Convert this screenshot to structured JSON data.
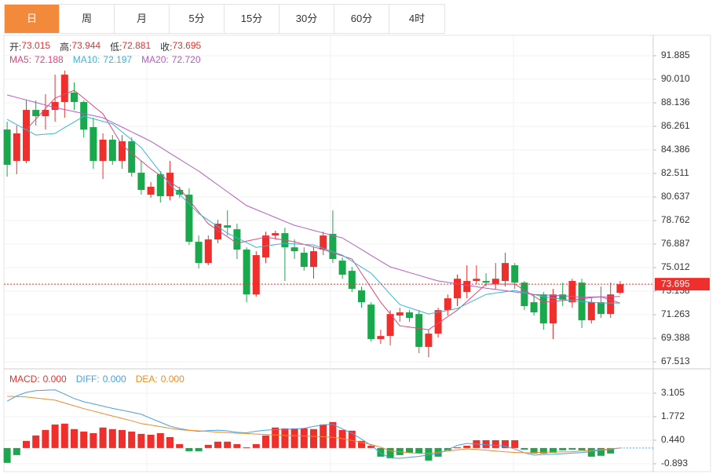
{
  "tabs": [
    "日",
    "周",
    "月",
    "5分",
    "15分",
    "30分",
    "60分",
    "4时"
  ],
  "selected_tab": 0,
  "chart_data": [
    {
      "type": "candlestick",
      "ohlc_legend": [
        {
          "label": "开:",
          "value": "73.015"
        },
        {
          "label": "高:",
          "value": "73.944"
        },
        {
          "label": "低:",
          "value": "72.881"
        },
        {
          "label": "收:",
          "value": "73.695"
        }
      ],
      "up_color": "#ee2f2b",
      "down_color": "#1aa84c",
      "open": [
        86.01,
        83.51,
        83.51,
        87.57,
        87.07,
        87.57,
        88.2,
        88.95,
        88.2,
        86.2,
        83.51,
        85.2,
        83.51,
        85.07,
        82.57,
        80.82,
        82.45,
        80.7,
        81.2,
        80.82,
        77.07,
        75.38,
        77.26,
        78.38,
        78.07,
        76.45,
        72.88,
        75.82,
        77.57,
        77.76,
        76.63,
        76.2,
        75.07,
        76.45,
        77.7,
        75.57,
        74.76,
        73.2,
        72.07,
        69.32,
        69.57,
        71.2,
        71.45,
        71.32,
        68.7,
        69.76,
        71.63,
        72.57,
        73.07,
        73.95,
        73.95,
        73.7,
        73.95,
        75.2,
        73.82,
        72.26,
        72.88,
        70.57,
        72.88,
        72.26,
        73.82,
        70.82,
        72.26,
        71.32,
        73.015
      ],
      "high": [
        86.63,
        86.32,
        88.32,
        88.32,
        88.82,
        90.38,
        90.7,
        89.76,
        88.32,
        86.95,
        85.7,
        85.57,
        85.57,
        85.38,
        83.51,
        81.82,
        82.7,
        83.51,
        81.45,
        81.32,
        77.57,
        77.57,
        78.82,
        79.57,
        78.51,
        76.63,
        76.32,
        77.88,
        77.95,
        78.2,
        77.26,
        76.63,
        76.63,
        77.88,
        79.57,
        75.82,
        75.07,
        73.51,
        72.26,
        70.07,
        71.63,
        71.82,
        71.63,
        71.63,
        70.07,
        71.82,
        72.88,
        74.45,
        75.2,
        75.2,
        74.57,
        75.38,
        76.2,
        75.38,
        73.95,
        72.88,
        73.07,
        73.32,
        73.82,
        74.13,
        74.13,
        72.57,
        73.51,
        73.82,
        73.944
      ],
      "low": [
        82.26,
        82.45,
        83.32,
        86.32,
        86.01,
        86.63,
        86.95,
        87.57,
        85.38,
        82.88,
        82.07,
        83.2,
        82.88,
        82.26,
        80.82,
        80.57,
        80.2,
        80.38,
        80.57,
        76.82,
        74.95,
        75.2,
        76.95,
        77.57,
        75.7,
        72.26,
        72.7,
        75.38,
        77.26,
        73.95,
        75.7,
        74.76,
        74.13,
        76.01,
        75.38,
        74.13,
        73.07,
        71.82,
        69.13,
        68.95,
        68.82,
        70.7,
        70.7,
        68.2,
        67.88,
        69.45,
        71.2,
        71.95,
        72.57,
        73.7,
        73.51,
        73.32,
        73.51,
        73.32,
        71.63,
        71.2,
        70.07,
        69.32,
        71.95,
        71.82,
        70.2,
        70.57,
        71.01,
        71.01,
        72.881
      ],
      "close": [
        83.2,
        85.7,
        87.57,
        87.07,
        87.57,
        88.2,
        90.38,
        88.2,
        86.01,
        83.51,
        85.2,
        83.51,
        85.07,
        82.57,
        81.2,
        81.45,
        80.7,
        82.57,
        80.82,
        77.07,
        75.38,
        77.26,
        78.51,
        78.2,
        76.45,
        72.88,
        76.01,
        77.57,
        77.76,
        76.63,
        76.32,
        75.07,
        76.32,
        77.57,
        75.7,
        74.45,
        73.32,
        72.26,
        69.32,
        69.57,
        71.32,
        71.45,
        71.01,
        68.7,
        69.76,
        71.63,
        72.57,
        74.13,
        73.95,
        74.13,
        73.82,
        74.13,
        75.38,
        73.82,
        71.95,
        71.45,
        70.57,
        72.88,
        72.45,
        73.95,
        70.82,
        72.26,
        71.32,
        72.88,
        73.695
      ],
      "series": [
        {
          "name": "MA5:",
          "legend_value": "72.188",
          "color": "#e5457a",
          "values": [
            null,
            null,
            86.01,
            86.84,
            87.68,
            88.51,
            88.82,
            89.13,
            88.51,
            87.88,
            87.26,
            86.01,
            84.76,
            84.13,
            83.51,
            82.88,
            82.36,
            81.84,
            81.32,
            80.38,
            79.45,
            78.51,
            77.99,
            77.47,
            76.95,
            77.12,
            77.28,
            77.45,
            77.32,
            77.2,
            77.07,
            76.86,
            76.66,
            76.45,
            76.2,
            75.95,
            75.7,
            74.55,
            73.41,
            72.26,
            71.32,
            70.38,
            70.28,
            70.17,
            70.07,
            70.59,
            71.11,
            71.63,
            72.32,
            73.01,
            73.7,
            73.7,
            73.7,
            73.7,
            73.22,
            72.74,
            72.26,
            72.32,
            72.39,
            72.45,
            72.53,
            72.62,
            72.7,
            72.44,
            72.188
          ]
        },
        {
          "name": "MA10:",
          "legend_value": "72.197",
          "color": "#38b6d8",
          "values": [
            86.82,
            86.4,
            85.99,
            85.57,
            85.64,
            85.7,
            86.16,
            86.61,
            87.07,
            86.86,
            86.66,
            86.45,
            85.82,
            85.2,
            84.57,
            83.59,
            82.61,
            81.63,
            80.86,
            80.09,
            79.32,
            78.8,
            78.28,
            77.76,
            77.38,
            77.01,
            76.63,
            76.74,
            76.84,
            76.95,
            76.91,
            76.86,
            76.82,
            76.55,
            76.28,
            76.01,
            75.53,
            75.05,
            74.57,
            73.74,
            72.9,
            72.07,
            71.82,
            71.57,
            71.32,
            71.47,
            71.61,
            71.76,
            72.13,
            72.51,
            72.88,
            72.99,
            73.09,
            73.2,
            73.03,
            72.87,
            72.7,
            72.59,
            72.49,
            72.38,
            72.32,
            72.26,
            72.2,
            72.2,
            72.197
          ]
        },
        {
          "name": "MA20:",
          "legend_value": "72.720",
          "color": "#b45cc6",
          "values": [
            88.76,
            88.56,
            88.36,
            88.16,
            87.96,
            87.76,
            87.6,
            87.44,
            87.27,
            87.11,
            86.95,
            86.57,
            86.2,
            85.82,
            85.45,
            85.07,
            84.6,
            84.12,
            83.65,
            83.17,
            82.7,
            82.15,
            81.6,
            81.05,
            80.5,
            79.95,
            79.64,
            79.32,
            79.01,
            78.69,
            78.38,
            78.18,
            77.98,
            77.78,
            77.58,
            77.38,
            76.92,
            76.46,
            75.99,
            75.53,
            75.07,
            74.85,
            74.62,
            74.4,
            74.17,
            73.95,
            73.84,
            73.72,
            73.61,
            73.49,
            73.38,
            73.28,
            73.18,
            73.08,
            72.98,
            72.88,
            72.85,
            72.81,
            72.77,
            72.73,
            72.65,
            72.67,
            72.69,
            72.7,
            72.72
          ]
        }
      ],
      "ylim": [
        67.08,
        93.51
      ],
      "yticks": [
        {
          "value": 91.885,
          "label": "91.885"
        },
        {
          "value": 90.01,
          "label": "90.010"
        },
        {
          "value": 88.136,
          "label": "88.136"
        },
        {
          "value": 86.261,
          "label": "86.261"
        },
        {
          "value": 84.386,
          "label": "84.386"
        },
        {
          "value": 82.511,
          "label": "82.511"
        },
        {
          "value": 80.637,
          "label": "80.637"
        },
        {
          "value": 78.762,
          "label": "78.762"
        },
        {
          "value": 76.887,
          "label": "76.887"
        },
        {
          "value": 75.012,
          "label": "75.012"
        },
        {
          "value": 73.138,
          "label": "73.138"
        },
        {
          "value": 71.263,
          "label": "71.263"
        },
        {
          "value": 69.388,
          "label": "69.388"
        },
        {
          "value": 67.513,
          "label": "67.513"
        }
      ],
      "grid": true
    },
    {
      "type": "macd",
      "series": [
        {
          "name": "MACD:",
          "legend_value": "0.000",
          "color": "#ee2f2b",
          "down_color": "#1aa84c",
          "values": [
            -0.84,
            -0.4,
            0.4,
            0.71,
            1.02,
            1.33,
            1.38,
            1.07,
            0.93,
            0.84,
            1.16,
            1.07,
            1.02,
            0.93,
            0.8,
            0.75,
            0.84,
            0.62,
            0.22,
            -0.18,
            -0.18,
            0.18,
            0.36,
            0.36,
            0.22,
            0.04,
            0.22,
            0.71,
            1.16,
            1.11,
            1.11,
            1.11,
            1.07,
            1.33,
            1.47,
            1.02,
            0.98,
            0.4,
            0.13,
            -0.49,
            -0.58,
            -0.4,
            -0.27,
            -0.31,
            -0.71,
            -0.49,
            -0.13,
            0.04,
            0.13,
            0.44,
            0.44,
            0.44,
            0.44,
            0.44,
            -0.09,
            -0.31,
            -0.31,
            -0.27,
            -0.13,
            -0.09,
            -0.13,
            -0.49,
            -0.44,
            -0.31,
            0
          ]
        },
        {
          "name": "DIFF:",
          "legend_value": "0.000",
          "color": "#4a9fe0",
          "values": [
            2.65,
            2.95,
            3.15,
            3.25,
            3.27,
            3.29,
            3.05,
            2.8,
            2.62,
            2.5,
            2.37,
            2.24,
            2.14,
            2.03,
            1.91,
            1.68,
            1.46,
            1.24,
            1.1,
            1.01,
            0.94,
            0.98,
            1.01,
            0.97,
            0.89,
            0.86,
            0.95,
            1.01,
            1.04,
            1.06,
            1.07,
            1.12,
            1.22,
            1.32,
            1.34,
            1.08,
            0.84,
            0.5,
            0.15,
            -0.29,
            -0.56,
            -0.58,
            -0.53,
            -0.47,
            -0.39,
            -0.32,
            -0.09,
            0.15,
            0.26,
            0.22,
            0.18,
            0.15,
            0.11,
            -0.06,
            -0.27,
            -0.4,
            -0.37,
            -0.35,
            -0.32,
            -0.29,
            -0.26,
            -0.2,
            -0.13,
            -0.07,
            0
          ]
        },
        {
          "name": "DEA:",
          "legend_value": "0.000",
          "color": "#f08a2c",
          "values": [
            2.93,
            2.91,
            2.89,
            2.83,
            2.77,
            2.71,
            2.55,
            2.39,
            2.23,
            2.09,
            1.95,
            1.81,
            1.68,
            1.54,
            1.38,
            1.3,
            1.21,
            1.12,
            1.04,
            1.0,
            0.97,
            0.94,
            0.9,
            0.87,
            0.84,
            0.82,
            0.79,
            0.77,
            0.74,
            0.71,
            0.7,
            0.68,
            0.66,
            0.64,
            0.61,
            0.53,
            0.42,
            0.32,
            0.2,
            0.05,
            -0.16,
            -0.22,
            -0.27,
            -0.3,
            -0.3,
            -0.24,
            -0.17,
            -0.11,
            -0.05,
            -0.08,
            -0.12,
            -0.17,
            -0.22,
            -0.25,
            -0.27,
            -0.26,
            -0.24,
            -0.23,
            -0.22,
            -0.21,
            -0.18,
            -0.14,
            -0.1,
            -0.05,
            0
          ]
        }
      ],
      "ylim": [
        -1.47,
        4.48
      ],
      "yticks": [
        3.105,
        1.772,
        {
          "value": 0.44,
          "label": "0.440"
        },
        -0.893
      ],
      "grid": true
    }
  ]
}
